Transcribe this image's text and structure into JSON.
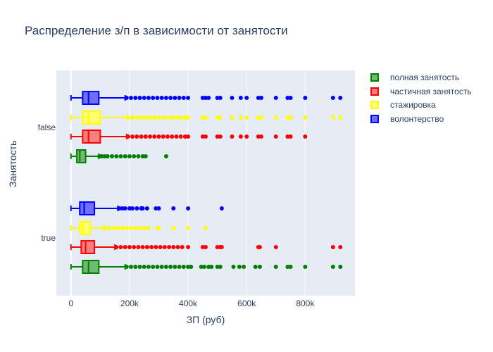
{
  "chart_data": {
    "type": "box",
    "title": "Распределение з/п в зависимости от занятости",
    "xlabel": "ЗП (руб)",
    "ylabel": "Занятость",
    "xlim": [
      -50000,
      970000
    ],
    "x_ticks": [
      0,
      200000,
      400000,
      600000,
      800000
    ],
    "x_tick_labels": [
      "0",
      "200k",
      "400k",
      "600k",
      "800k"
    ],
    "categories": [
      "false",
      "true"
    ],
    "legend": "right",
    "grid": true,
    "series": [
      {
        "name": "полная занятость",
        "fill": "#6fba6f",
        "line": "#008000",
        "groups": {
          "false": {
            "min": 0,
            "q1": 20000,
            "median": 30000,
            "q3": 50000,
            "max": 95000,
            "outliers": [
              97000,
              105000,
              115000,
              125000,
              140000,
              155000,
              170000,
              185000,
              200000,
              215000,
              230000,
              245000,
              255000,
              325000
            ]
          },
          "true": {
            "min": 0,
            "q1": 40000,
            "median": 60000,
            "q3": 95000,
            "max": 185000,
            "outliers": [
              190000,
              205000,
              220000,
              235000,
              250000,
              265000,
              280000,
              295000,
              310000,
              325000,
              340000,
              355000,
              370000,
              385000,
              400000,
              410000,
              445000,
              455000,
              470000,
              480000,
              500000,
              510000,
              555000,
              575000,
              590000,
              630000,
              645000,
              700000,
              740000,
              750000,
              800000,
              895000,
              920000
            ]
          }
        }
      },
      {
        "name": "частичная занятость",
        "fill": "#f77f7f",
        "line": "#ff0000",
        "groups": {
          "false": {
            "min": 0,
            "q1": 40000,
            "median": 60000,
            "q3": 100000,
            "max": 190000,
            "outliers": [
              195000,
              210000,
              225000,
              240000,
              255000,
              270000,
              285000,
              300000,
              315000,
              330000,
              345000,
              360000,
              375000,
              390000,
              400000,
              450000,
              460000,
              500000,
              510000,
              550000,
              580000,
              600000,
              640000,
              650000,
              700000,
              740000,
              750000,
              800000
            ]
          },
          "true": {
            "min": 0,
            "q1": 35000,
            "median": 50000,
            "q3": 80000,
            "max": 150000,
            "outliers": [
              155000,
              170000,
              185000,
              200000,
              215000,
              230000,
              245000,
              260000,
              275000,
              290000,
              305000,
              320000,
              335000,
              350000,
              365000,
              380000,
              400000,
              450000,
              460000,
              500000,
              510000,
              515000,
              640000,
              645000,
              700000,
              895000,
              920000
            ]
          }
        }
      },
      {
        "name": "стажировка",
        "fill": "#ffff6f",
        "line": "#ffff00",
        "groups": {
          "false": {
            "min": 0,
            "q1": 40000,
            "median": 60000,
            "q3": 100000,
            "max": 190000,
            "outliers": [
              195000,
              210000,
              225000,
              240000,
              255000,
              270000,
              285000,
              300000,
              315000,
              330000,
              345000,
              360000,
              375000,
              390000,
              400000,
              450000,
              460000,
              500000,
              510000,
              550000,
              580000,
              600000,
              640000,
              650000,
              700000,
              740000,
              750000,
              800000,
              895000,
              920000
            ]
          },
          "true": {
            "min": 0,
            "q1": 30000,
            "median": 40000,
            "q3": 65000,
            "max": 110000,
            "outliers": [
              115000,
              130000,
              145000,
              160000,
              175000,
              190000,
              205000,
              220000,
              235000,
              250000,
              265000,
              295000,
              300000,
              350000,
              400000,
              460000
            ]
          }
        }
      },
      {
        "name": "волонтерство",
        "fill": "#6f6ff7",
        "line": "#0000ff",
        "groups": {
          "false": {
            "min": 0,
            "q1": 40000,
            "median": 60000,
            "q3": 95000,
            "max": 185000,
            "outliers": [
              190000,
              205000,
              220000,
              235000,
              250000,
              265000,
              280000,
              295000,
              310000,
              325000,
              340000,
              355000,
              370000,
              385000,
              400000,
              450000,
              460000,
              470000,
              500000,
              510000,
              550000,
              580000,
              600000,
              640000,
              650000,
              700000,
              740000,
              750000,
              800000,
              895000,
              920000
            ]
          },
          "true": {
            "min": 0,
            "q1": 30000,
            "median": 45000,
            "q3": 80000,
            "max": 160000,
            "outliers": [
              165000,
              175000,
              185000,
              200000,
              210000,
              225000,
              240000,
              245000,
              260000,
              290000,
              300000,
              350000,
              400000,
              515000
            ]
          }
        }
      }
    ]
  }
}
